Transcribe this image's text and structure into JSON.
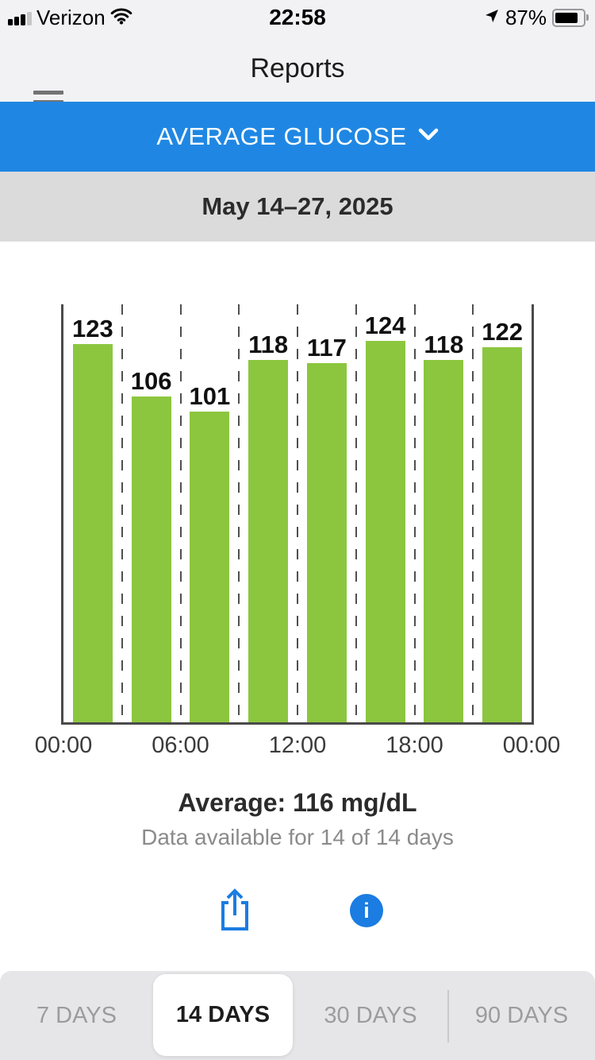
{
  "status_bar": {
    "carrier": "Verizon",
    "time": "22:58",
    "battery_percent": "87%"
  },
  "header": {
    "title": "Reports"
  },
  "metric_selector": {
    "label": "AVERAGE GLUCOSE"
  },
  "date_range": {
    "label": "May 14–27, 2025"
  },
  "chart_data": {
    "type": "bar",
    "title": "",
    "values": [
      123,
      106,
      101,
      118,
      117,
      124,
      118,
      122
    ],
    "x_tick_labels": [
      "00:00",
      "06:00",
      "12:00",
      "18:00",
      "00:00"
    ],
    "xlabel": "",
    "ylabel": "",
    "ylim": [
      0,
      136
    ],
    "bar_color": "#8cc63f",
    "grid": "dashed-vertical-between-bars",
    "legend": "none"
  },
  "summary": {
    "average": "Average: 116 mg/dL",
    "availability": "Data available for 14 of 14 days"
  },
  "actions": {
    "share_icon": "share-icon",
    "info_icon": "info-icon",
    "info_glyph": "i",
    "icon_blue": "#1b7ce2"
  },
  "tabs": {
    "items": [
      {
        "label": "7 DAYS",
        "selected": false
      },
      {
        "label": "14 DAYS",
        "selected": true
      },
      {
        "label": "30 DAYS",
        "selected": false
      },
      {
        "label": "90 DAYS",
        "selected": false
      }
    ]
  },
  "colors": {
    "accent_blue": "#1f87e3",
    "bar_green": "#8cc63f",
    "date_bar_gray": "#dbdbdb",
    "header_gray": "#f2f2f4"
  }
}
